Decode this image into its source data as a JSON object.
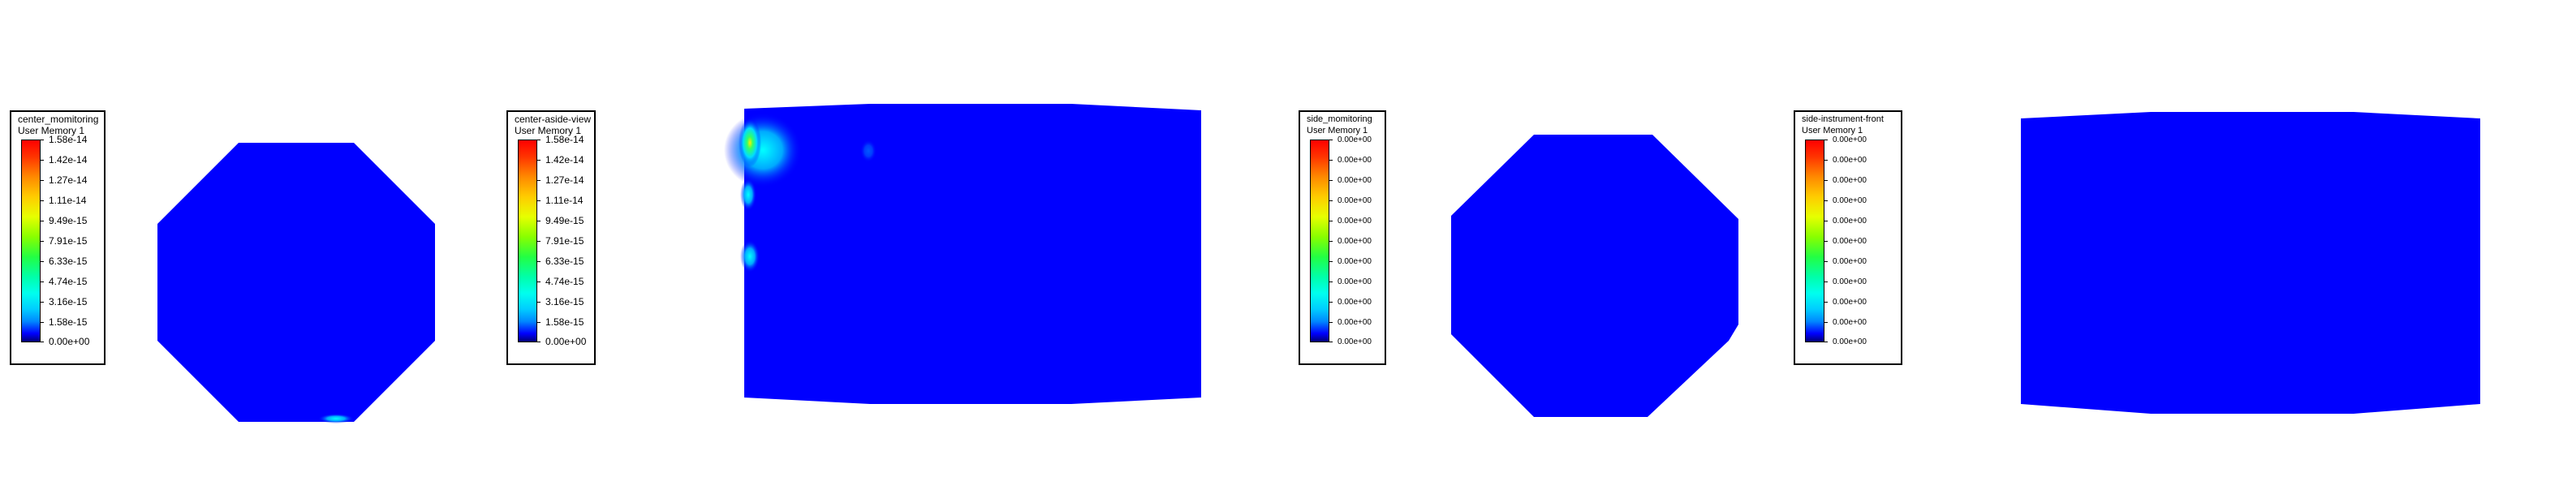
{
  "legends": [
    {
      "id": "center-monitoring",
      "title": "center_momitoring",
      "subtitle": "User Memory 1",
      "ticks": [
        "1.58e-14",
        "1.42e-14",
        "1.27e-14",
        "1.11e-14",
        "9.49e-15",
        "7.91e-15",
        "6.33e-15",
        "4.74e-15",
        "3.16e-15",
        "1.58e-15",
        "0.00e+00"
      ]
    },
    {
      "id": "center-aside-view",
      "title": "center-aside-view",
      "subtitle": "User Memory 1",
      "ticks": [
        "1.58e-14",
        "1.42e-14",
        "1.27e-14",
        "1.11e-14",
        "9.49e-15",
        "7.91e-15",
        "6.33e-15",
        "4.74e-15",
        "3.16e-15",
        "1.58e-15",
        "0.00e+00"
      ]
    },
    {
      "id": "side-monitoring",
      "title": "side_momitoring",
      "subtitle": "User Memory 1",
      "ticks": [
        "0.00e+00",
        "0.00e+00",
        "0.00e+00",
        "0.00e+00",
        "0.00e+00",
        "0.00e+00",
        "0.00e+00",
        "0.00e+00",
        "0.00e+00",
        "0.00e+00",
        "0.00e+00"
      ]
    },
    {
      "id": "side-instrument-front",
      "title": "side-instrument-front",
      "subtitle": "User Memory 1",
      "ticks": [
        "0.00e+00",
        "0.00e+00",
        "0.00e+00",
        "0.00e+00",
        "0.00e+00",
        "0.00e+00",
        "0.00e+00",
        "0.00e+00",
        "0.00e+00",
        "0.00e+00",
        "0.00e+00"
      ]
    }
  ],
  "colors": {
    "field": "#0000ff",
    "background": "#ffffff"
  }
}
